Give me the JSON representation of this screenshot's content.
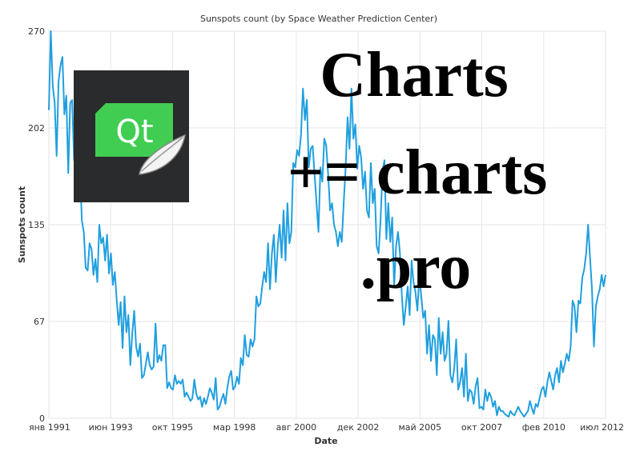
{
  "logo": {
    "text": "Qt",
    "bg": "#2a2b2c",
    "green": "#41cd52"
  },
  "banner": {
    "lines": [
      "Charts",
      "+= charts",
      ".pro"
    ]
  },
  "chart_data": {
    "type": "line",
    "title": "Sunspots count (by Space Weather Prediction Center)",
    "xlabel": "Date",
    "ylabel": "Sunspots count",
    "ylim": [
      0,
      270
    ],
    "yticks": [
      "0",
      "67",
      "135",
      "202",
      "270"
    ],
    "xticks": [
      "янв 1991",
      "июн 1993",
      "окт 1995",
      "мар 1998",
      "авг 2000",
      "дек 2002",
      "май 2005",
      "окт 2007",
      "фев 2010",
      "июл 2012"
    ],
    "grid": true,
    "line_color": "#209fdf",
    "series": [
      {
        "values": [
          215,
          270,
          232,
          220,
          183,
          235,
          246,
          252,
          212,
          225,
          171,
          220,
          222,
          180,
          205,
          160,
          175,
          138,
          130,
          105,
          103,
          122,
          118,
          100,
          111,
          95,
          135,
          122,
          126,
          110,
          128,
          101,
          115,
          93,
          102,
          82,
          65,
          81,
          49,
          85,
          60,
          72,
          37,
          59,
          75,
          50,
          43,
          52,
          28,
          30,
          38,
          46,
          37,
          34,
          36,
          66,
          39,
          44,
          40,
          51,
          51,
          21,
          25,
          21,
          20,
          30,
          24,
          26,
          24,
          27,
          15,
          18,
          15,
          12,
          14,
          27,
          17,
          13,
          15,
          8,
          14,
          10,
          15,
          21,
          18,
          13,
          28,
          6,
          8,
          13,
          17,
          10,
          21,
          29,
          33,
          20,
          22,
          29,
          24,
          42,
          37,
          58,
          44,
          43,
          55,
          50,
          55,
          85,
          78,
          80,
          92,
          102,
          95,
          122,
          90,
          115,
          128,
          95,
          120,
          135,
          112,
          145,
          110,
          150,
          122,
          130,
          178,
          175,
          187,
          183,
          198,
          230,
          208,
          222,
          175,
          188,
          190,
          170,
          150,
          130,
          175,
          165,
          195,
          190,
          170,
          145,
          150,
          135,
          130,
          120,
          130,
          123,
          150,
          175,
          210,
          188,
          230,
          195,
          205,
          174,
          190,
          182,
          160,
          172,
          145,
          140,
          178,
          150,
          160,
          120,
          115,
          138,
          172,
          180,
          125,
          150,
          123,
          140,
          92,
          120,
          130,
          115,
          85,
          65,
          78,
          92,
          72,
          110,
          95,
          88,
          75,
          100,
          85,
          70,
          75,
          45,
          65,
          40,
          58,
          55,
          30,
          70,
          45,
          60,
          40,
          45,
          68,
          30,
          25,
          35,
          55,
          20,
          25,
          35,
          15,
          45,
          12,
          20,
          18,
          10,
          22,
          28,
          7,
          8,
          6,
          20,
          12,
          18,
          15,
          8,
          12,
          2,
          8,
          5,
          5,
          3,
          2,
          1,
          5,
          3,
          2,
          5,
          8,
          5,
          3,
          1,
          3,
          5,
          12,
          7,
          3,
          10,
          8,
          14,
          20,
          22,
          15,
          25,
          32,
          26,
          20,
          30,
          35,
          25,
          40,
          32,
          38,
          45,
          40,
          50,
          82,
          78,
          60,
          82,
          80,
          98,
          104,
          115,
          135,
          112,
          90,
          50,
          78,
          85,
          90,
          100,
          92,
          100
        ]
      }
    ]
  }
}
